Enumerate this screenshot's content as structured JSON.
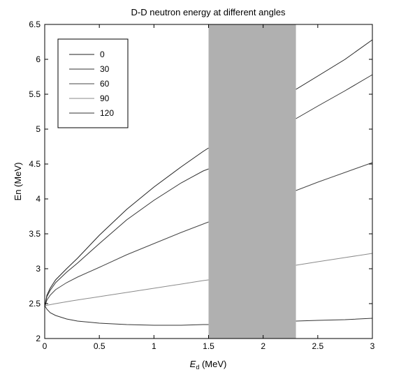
{
  "chart_data": {
    "type": "line",
    "title": "D-D neutron energy at different angles",
    "xlabel_main": "E",
    "xlabel_sub": "d",
    "xlabel_unit": " (MeV)",
    "ylabel": "En (MeV)",
    "xlim": [
      0,
      3
    ],
    "ylim": [
      2,
      6.5
    ],
    "xticks": [
      0,
      0.5,
      1,
      1.5,
      2,
      2.5,
      3
    ],
    "xtick_labels": [
      "0",
      "0.5",
      "1",
      "1.5",
      "2",
      "2.5",
      "3"
    ],
    "yticks": [
      2,
      2.5,
      3,
      3.5,
      4,
      4.5,
      5,
      5.5,
      6,
      6.5
    ],
    "ytick_labels": [
      "2",
      "2.5",
      "3",
      "3.5",
      "4",
      "4.5",
      "5",
      "5.5",
      "6",
      "6.5"
    ],
    "grid": false,
    "legend_position": "top-left",
    "shaded_region": {
      "x_range": [
        1.5,
        2.3
      ],
      "color": "#b0b0b0"
    },
    "series": [
      {
        "name": "0",
        "color": "#222222",
        "x": [
          0,
          0.02,
          0.05,
          0.1,
          0.2,
          0.3,
          0.5,
          0.75,
          1.0,
          1.25,
          1.45,
          1.5,
          2.3,
          2.5,
          2.75,
          3.0
        ],
        "y": [
          2.45,
          2.62,
          2.72,
          2.84,
          3.0,
          3.15,
          3.48,
          3.85,
          4.17,
          4.46,
          4.68,
          4.73,
          5.57,
          5.76,
          6.0,
          6.28
        ]
      },
      {
        "name": "30",
        "color": "#333333",
        "x": [
          0,
          0.02,
          0.05,
          0.1,
          0.2,
          0.3,
          0.5,
          0.75,
          1.0,
          1.25,
          1.45,
          1.5,
          2.3,
          2.5,
          2.75,
          3.0
        ],
        "y": [
          2.45,
          2.6,
          2.69,
          2.8,
          2.95,
          3.08,
          3.36,
          3.7,
          3.98,
          4.23,
          4.4,
          4.43,
          5.15,
          5.33,
          5.55,
          5.78
        ]
      },
      {
        "name": "60",
        "color": "#444444",
        "x": [
          0,
          0.02,
          0.05,
          0.1,
          0.2,
          0.3,
          0.5,
          0.75,
          1.0,
          1.25,
          1.45,
          1.5,
          2.3,
          2.5,
          2.75,
          3.0
        ],
        "y": [
          2.45,
          2.55,
          2.62,
          2.7,
          2.8,
          2.88,
          3.02,
          3.2,
          3.36,
          3.52,
          3.64,
          3.67,
          4.12,
          4.24,
          4.38,
          4.52
        ]
      },
      {
        "name": "90",
        "color": "#8a8a8a",
        "x": [
          0,
          0.1,
          0.25,
          0.5,
          0.75,
          1.0,
          1.25,
          1.45,
          1.5,
          2.3,
          2.5,
          2.75,
          3.0
        ],
        "y": [
          2.47,
          2.5,
          2.54,
          2.6,
          2.66,
          2.72,
          2.78,
          2.83,
          2.84,
          3.05,
          3.1,
          3.16,
          3.22
        ]
      },
      {
        "name": "120",
        "color": "#333333",
        "x": [
          0,
          0.02,
          0.05,
          0.1,
          0.2,
          0.3,
          0.5,
          0.75,
          1.0,
          1.25,
          1.45,
          1.5,
          2.3,
          2.5,
          2.75,
          3.0
        ],
        "y": [
          2.47,
          2.42,
          2.37,
          2.33,
          2.28,
          2.25,
          2.22,
          2.2,
          2.19,
          2.19,
          2.2,
          2.2,
          2.25,
          2.26,
          2.27,
          2.29
        ]
      }
    ]
  }
}
